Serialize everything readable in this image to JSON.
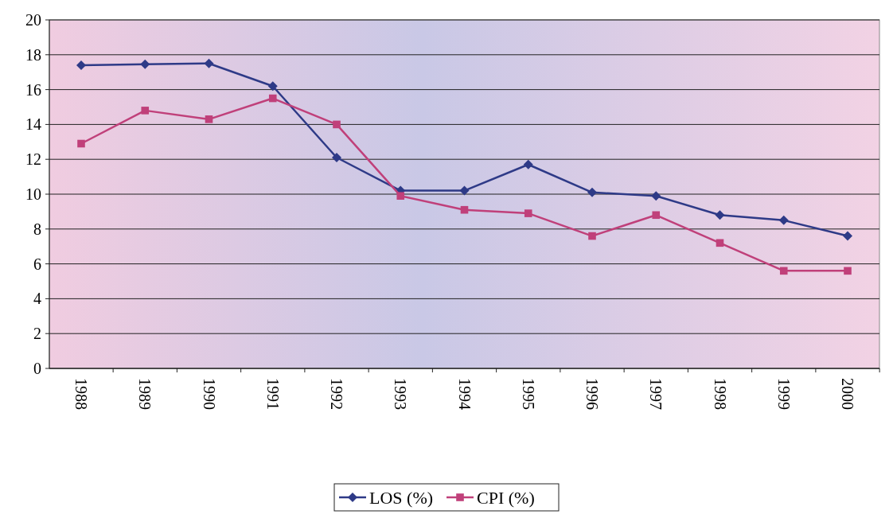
{
  "chart_data": {
    "type": "line",
    "categories": [
      "1988",
      "1989",
      "1990",
      "1991",
      "1992",
      "1993",
      "1994",
      "1995",
      "1996",
      "1997",
      "1998",
      "1999",
      "2000"
    ],
    "series": [
      {
        "name": "LOS (%)",
        "color": "#2e3a87",
        "marker": "diamond",
        "values": [
          17.4,
          17.45,
          17.5,
          16.2,
          12.1,
          10.2,
          10.2,
          11.7,
          10.1,
          9.9,
          8.8,
          8.5,
          7.6
        ]
      },
      {
        "name": "CPI (%)",
        "color": "#c0407a",
        "marker": "square",
        "values": [
          12.9,
          14.8,
          14.3,
          15.5,
          14.0,
          9.9,
          9.1,
          8.9,
          7.6,
          8.8,
          7.2,
          5.6,
          5.6
        ]
      }
    ],
    "ylim": [
      0,
      20
    ],
    "yticks": [
      0,
      2,
      4,
      6,
      8,
      10,
      12,
      14,
      16,
      18,
      20
    ],
    "grid": "y",
    "legend": "bottom",
    "line_style": "solid"
  }
}
